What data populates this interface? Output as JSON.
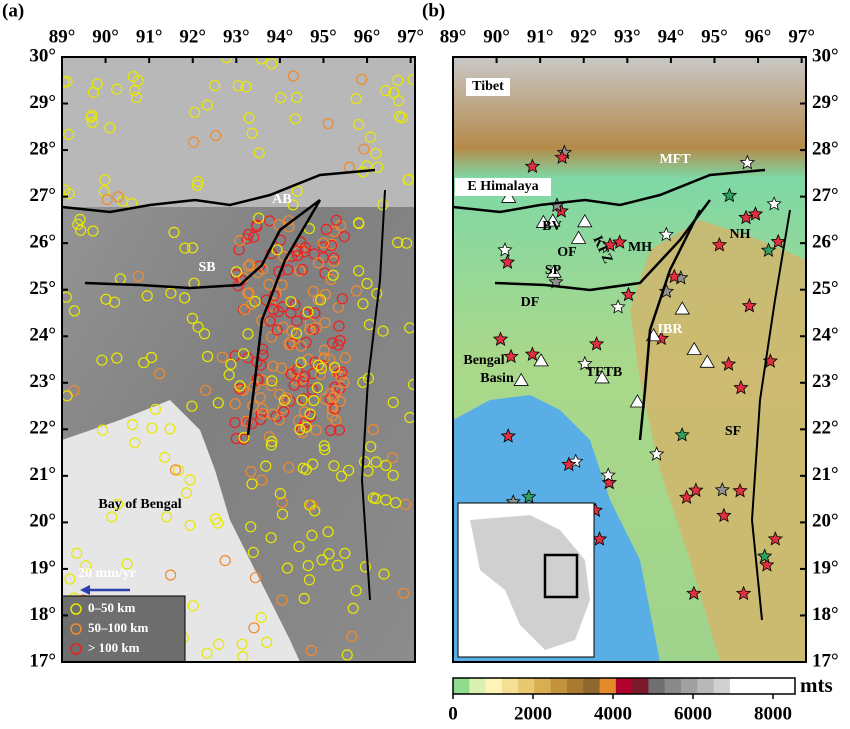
{
  "panels": [
    {
      "label": "(a)",
      "lon_range": [
        89,
        97.1
      ],
      "lat_range": [
        17,
        30
      ],
      "lon_ticks": [
        {
          "value": 89,
          "label": "89°"
        },
        {
          "value": 90,
          "label": "90°"
        },
        {
          "value": 91,
          "label": "91°"
        },
        {
          "value": 92,
          "label": "92°"
        },
        {
          "value": 93,
          "label": "93°"
        },
        {
          "value": 94,
          "label": "94°"
        },
        {
          "value": 95,
          "label": "95°"
        },
        {
          "value": 96,
          "label": "96°"
        },
        {
          "value": 97,
          "label": "97°"
        }
      ],
      "lat_ticks": [
        {
          "value": 30,
          "label": "30°"
        },
        {
          "value": 29,
          "label": "29°"
        },
        {
          "value": 28,
          "label": "28°"
        },
        {
          "value": 27,
          "label": "27°"
        },
        {
          "value": 26,
          "label": "26°"
        },
        {
          "value": 25,
          "label": "25°"
        },
        {
          "value": 24,
          "label": "24°"
        },
        {
          "value": 23,
          "label": "23°"
        },
        {
          "value": 22,
          "label": "22°"
        },
        {
          "value": 21,
          "label": "21°"
        },
        {
          "value": 20,
          "label": "20°"
        },
        {
          "value": 19,
          "label": "19°"
        },
        {
          "value": 18,
          "label": "18°"
        },
        {
          "value": 17,
          "label": "17°"
        }
      ],
      "annotations": [
        "AB",
        "SB",
        "Bay of Bengal"
      ],
      "scale_label": "20 mm/yr",
      "legend": [
        {
          "label": "0–50 km",
          "color": "#e8e800"
        },
        {
          "label": "50–100 km",
          "color": "#f08a30"
        },
        {
          "label": "> 100 km",
          "color": "#ee2020"
        }
      ]
    },
    {
      "label": "(b)",
      "lon_range": [
        89,
        97.1
      ],
      "lat_range": [
        17,
        30
      ],
      "lon_ticks": [
        {
          "value": 89,
          "label": "89°"
        },
        {
          "value": 90,
          "label": "90°"
        },
        {
          "value": 91,
          "label": "91°"
        },
        {
          "value": 92,
          "label": "92°"
        },
        {
          "value": 93,
          "label": "93°"
        },
        {
          "value": 94,
          "label": "94°"
        },
        {
          "value": 95,
          "label": "95°"
        },
        {
          "value": 96,
          "label": "96°"
        },
        {
          "value": 97,
          "label": "97°"
        }
      ],
      "lat_ticks": [
        {
          "value": 30,
          "label": "30°"
        },
        {
          "value": 29,
          "label": "29°"
        },
        {
          "value": 28,
          "label": "28°"
        },
        {
          "value": 27,
          "label": "27°"
        },
        {
          "value": 26,
          "label": "26°"
        },
        {
          "value": 25,
          "label": "25°"
        },
        {
          "value": 24,
          "label": "24°"
        },
        {
          "value": 23,
          "label": "23°"
        },
        {
          "value": 22,
          "label": "22°"
        },
        {
          "value": 21,
          "label": "21°"
        },
        {
          "value": 20,
          "label": "20°"
        },
        {
          "value": 19,
          "label": "19°"
        },
        {
          "value": 18,
          "label": "18°"
        },
        {
          "value": 17,
          "label": "17°"
        }
      ],
      "annotations": [
        "Tibet",
        "MFT",
        "E Himalaya",
        "BV",
        "OF",
        "KFZ",
        "MH",
        "NH",
        "SP",
        "DF",
        "IBR",
        "Bengal",
        "Basin",
        "TFTB",
        "SF"
      ]
    }
  ],
  "colorbar": {
    "range": [
      0,
      8550
    ],
    "ticks": [
      0,
      2000,
      4000,
      6000,
      8000
    ],
    "unit": "mts",
    "colors": [
      "#8fdc8f",
      "#d8f0b0",
      "#fff4b8",
      "#f4df95",
      "#e8c870",
      "#d8ae52",
      "#c2923c",
      "#a87a32",
      "#8e682c",
      "#e48a2c",
      "#b0002c",
      "#7a1a2a",
      "#707070",
      "#8a8a8a",
      "#a0a0a0",
      "#b8b8b8",
      "#d0d0d0",
      "#ffffff",
      "#ffffff",
      "#ffffff",
      "#ffffff"
    ]
  }
}
